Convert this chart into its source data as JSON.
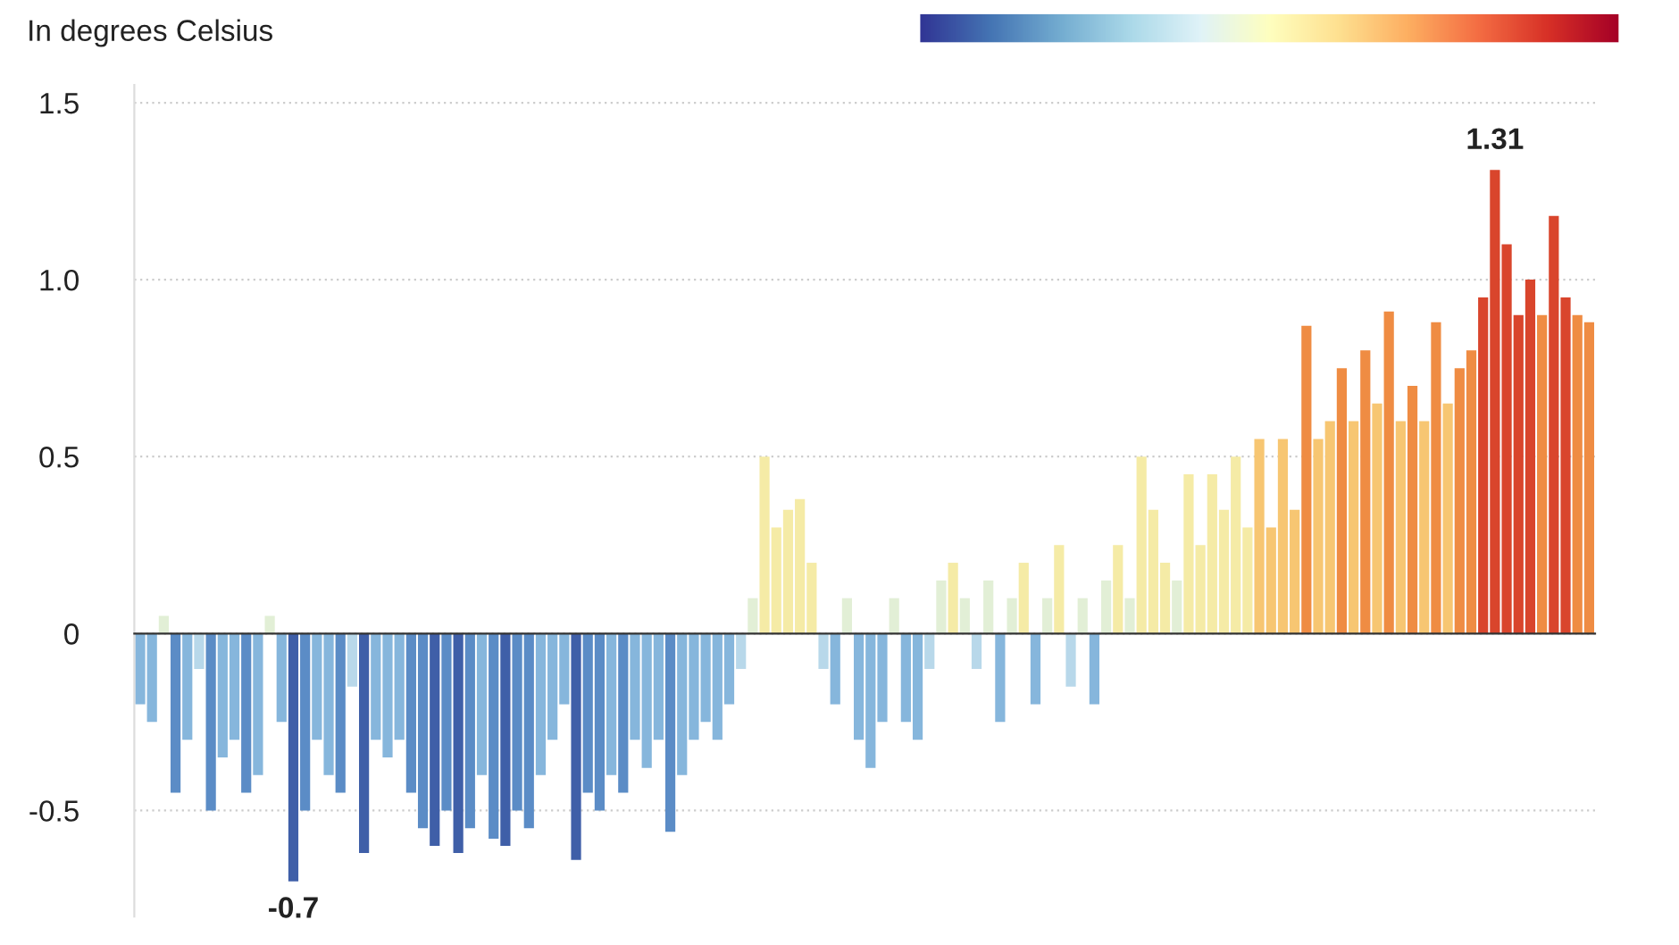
{
  "chart_data": {
    "type": "bar",
    "subtitle": "In degrees Celsius",
    "categories": [
      null,
      null,
      null,
      null,
      null,
      null,
      null,
      null,
      null,
      null,
      null,
      null,
      null,
      null,
      null,
      null,
      null,
      null,
      null,
      null,
      null,
      null,
      null,
      null,
      null,
      null,
      null,
      null,
      null,
      null,
      null,
      null,
      null,
      null,
      null,
      null,
      null,
      null,
      null,
      null,
      null,
      null,
      null,
      null,
      null,
      null,
      null,
      null,
      null,
      null,
      null,
      null,
      null,
      null,
      null,
      null,
      null,
      null,
      null,
      null,
      null,
      null,
      null,
      null,
      null,
      null,
      null,
      null,
      null,
      null,
      null,
      null,
      null,
      null,
      null,
      null,
      null,
      null,
      null,
      null,
      null,
      null,
      null,
      null,
      null,
      null,
      null,
      null,
      null,
      null,
      null,
      null,
      null,
      null,
      null,
      null,
      null,
      null,
      null,
      null,
      null,
      null,
      null,
      null,
      null,
      null,
      null,
      null,
      null,
      null,
      null,
      null,
      null,
      null,
      null,
      null,
      null,
      null,
      null,
      null,
      null,
      null,
      null,
      null
    ],
    "values": [
      -0.2,
      -0.25,
      0.05,
      -0.45,
      -0.3,
      -0.1,
      -0.5,
      -0.35,
      -0.3,
      -0.45,
      -0.4,
      0.05,
      -0.25,
      -0.7,
      -0.5,
      -0.3,
      -0.4,
      -0.45,
      -0.15,
      -0.62,
      -0.3,
      -0.35,
      -0.3,
      -0.45,
      -0.55,
      -0.6,
      -0.5,
      -0.62,
      -0.55,
      -0.4,
      -0.58,
      -0.6,
      -0.5,
      -0.55,
      -0.4,
      -0.3,
      -0.2,
      -0.64,
      -0.45,
      -0.5,
      -0.4,
      -0.45,
      -0.3,
      -0.38,
      -0.3,
      -0.56,
      -0.4,
      -0.3,
      -0.25,
      -0.3,
      -0.2,
      -0.1,
      0.1,
      0.5,
      0.3,
      0.35,
      0.38,
      0.2,
      -0.1,
      -0.2,
      0.1,
      -0.3,
      -0.38,
      -0.25,
      0.1,
      -0.25,
      -0.3,
      -0.1,
      0.15,
      0.2,
      0.1,
      -0.1,
      0.15,
      -0.25,
      0.1,
      0.2,
      -0.2,
      0.1,
      0.25,
      -0.15,
      0.1,
      -0.2,
      0.15,
      0.25,
      0.1,
      0.5,
      0.35,
      0.2,
      0.15,
      0.45,
      0.25,
      0.45,
      0.35,
      0.5,
      0.3,
      0.55,
      0.3,
      0.55,
      0.35,
      0.87,
      0.55,
      0.6,
      0.75,
      0.6,
      0.8,
      0.65,
      0.91,
      0.6,
      0.7,
      0.6,
      0.88,
      0.65,
      0.75,
      0.8,
      0.95,
      1.31,
      1.1,
      0.9,
      1.0,
      0.9,
      1.18,
      0.95,
      0.9,
      0.88
    ],
    "colors": [
      "#86b6dc",
      "#86b6dc",
      "#e2efd6",
      "#5b8cc6",
      "#86b6dc",
      "#b8d8ea",
      "#5b8cc6",
      "#86b6dc",
      "#86b6dc",
      "#5b8cc6",
      "#86b6dc",
      "#e2efd6",
      "#86b6dc",
      "#3f5fa8",
      "#5b8cc6",
      "#86b6dc",
      "#86b6dc",
      "#5b8cc6",
      "#b8d8ea",
      "#3f5fa8",
      "#86b6dc",
      "#86b6dc",
      "#86b6dc",
      "#5b8cc6",
      "#5b8cc6",
      "#3f5fa8",
      "#5b8cc6",
      "#3f5fa8",
      "#5b8cc6",
      "#86b6dc",
      "#5b8cc6",
      "#3f5fa8",
      "#5b8cc6",
      "#5b8cc6",
      "#86b6dc",
      "#86b6dc",
      "#86b6dc",
      "#3f5fa8",
      "#5b8cc6",
      "#5b8cc6",
      "#86b6dc",
      "#5b8cc6",
      "#86b6dc",
      "#86b6dc",
      "#86b6dc",
      "#5b8cc6",
      "#86b6dc",
      "#86b6dc",
      "#86b6dc",
      "#86b6dc",
      "#86b6dc",
      "#b8d8ea",
      "#e2efd6",
      "#f5eba6",
      "#f5eba6",
      "#f5eba6",
      "#f5eba6",
      "#f5eba6",
      "#b8d8ea",
      "#86b6dc",
      "#e2efd6",
      "#86b6dc",
      "#86b6dc",
      "#86b6dc",
      "#e2efd6",
      "#86b6dc",
      "#86b6dc",
      "#b8d8ea",
      "#e2efd6",
      "#f5eba6",
      "#e2efd6",
      "#b8d8ea",
      "#e2efd6",
      "#86b6dc",
      "#e2efd6",
      "#f5eba6",
      "#86b6dc",
      "#e2efd6",
      "#f5eba6",
      "#b8d8ea",
      "#e2efd6",
      "#86b6dc",
      "#e2efd6",
      "#f5eba6",
      "#e2efd6",
      "#f5eba6",
      "#f5eba6",
      "#f5eba6",
      "#e2efd6",
      "#f5eba6",
      "#f5eba6",
      "#f5eba6",
      "#f5eba6",
      "#f5eba6",
      "#f5eba6",
      "#f7c672",
      "#f7c672",
      "#f7c672",
      "#f7c672",
      "#ef8c43",
      "#f7c672",
      "#f7c672",
      "#ef8c43",
      "#f7c672",
      "#ef8c43",
      "#f7c672",
      "#ef8c43",
      "#f7c672",
      "#ef8c43",
      "#f7c672",
      "#ef8c43",
      "#f7c672",
      "#ef8c43",
      "#ef8c43",
      "#d9452c",
      "#d9452c",
      "#d9452c",
      "#d9452c",
      "#d9452c",
      "#ef8c43",
      "#d9452c",
      "#d9452c",
      "#ef8c43",
      "#ef8c43"
    ],
    "value_labels": [
      null,
      null,
      null,
      null,
      null,
      null,
      null,
      null,
      null,
      null,
      null,
      null,
      null,
      "-0.7",
      null,
      null,
      null,
      null,
      null,
      null,
      null,
      null,
      null,
      null,
      null,
      null,
      null,
      null,
      null,
      null,
      null,
      null,
      null,
      null,
      null,
      null,
      null,
      null,
      null,
      null,
      null,
      null,
      null,
      null,
      null,
      null,
      null,
      null,
      null,
      null,
      null,
      null,
      null,
      null,
      null,
      null,
      null,
      null,
      null,
      null,
      null,
      null,
      null,
      null,
      null,
      null,
      null,
      null,
      null,
      null,
      null,
      null,
      null,
      null,
      null,
      null,
      null,
      null,
      null,
      null,
      null,
      null,
      null,
      null,
      null,
      null,
      null,
      null,
      null,
      null,
      null,
      null,
      null,
      null,
      null,
      null,
      null,
      null,
      null,
      null,
      null,
      null,
      null,
      null,
      null,
      null,
      null,
      null,
      null,
      null,
      null,
      null,
      null,
      null,
      null,
      "1.31",
      null,
      null,
      null,
      null,
      null,
      null,
      null,
      null
    ],
    "ylim": [
      -0.8,
      1.55
    ],
    "yticks": [
      {
        "value": -0.5,
        "label": "-0.5"
      },
      0,
      0.5,
      {
        "value": 1.0,
        "label": "1.0"
      },
      1.5
    ],
    "grid": "y"
  }
}
